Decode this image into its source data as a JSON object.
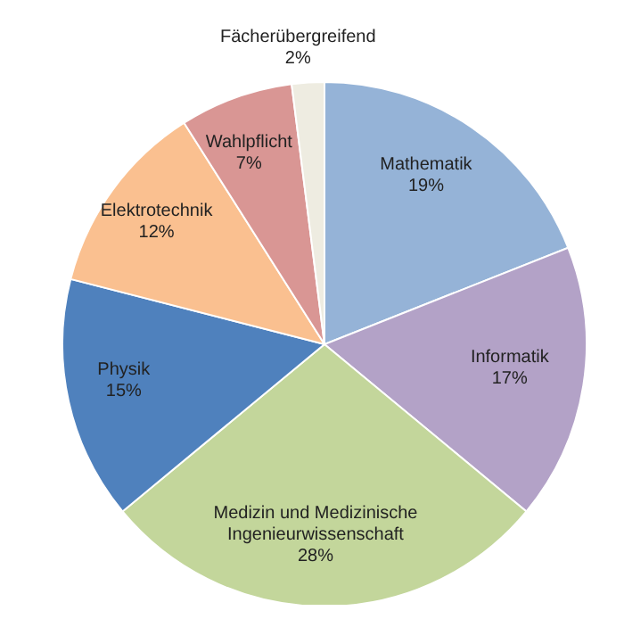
{
  "chart_data": {
    "type": "pie",
    "categories": [
      "Mathematik",
      "Informatik",
      "Medizin und Medizinische Ingenieurwissenschaft",
      "Physik",
      "Elektrotechnik",
      "Wahlpflicht",
      "Fächerübergreifend"
    ],
    "values": [
      19,
      17,
      28,
      15,
      12,
      7,
      2
    ],
    "colors": [
      "#95b3d7",
      "#b3a2c7",
      "#c3d69b",
      "#4f81bd",
      "#fac090",
      "#d99694",
      "#eeece1"
    ],
    "value_labels": [
      "19%",
      "17%",
      "28%",
      "15%",
      "12%",
      "7%",
      "2%"
    ],
    "legend": false
  }
}
